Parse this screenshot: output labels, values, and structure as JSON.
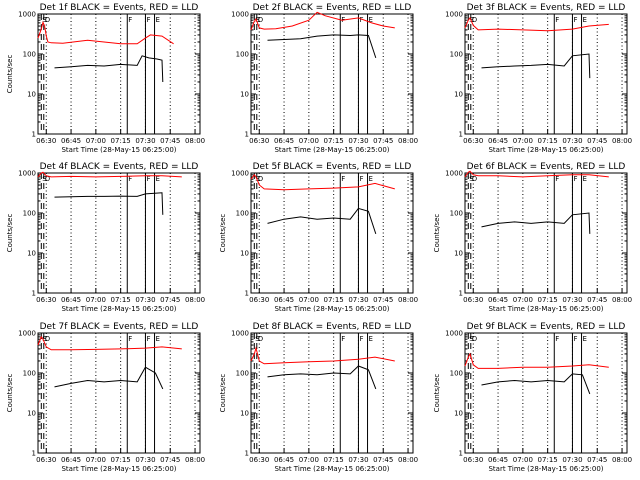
{
  "chart_data": [
    {
      "type": "line",
      "title": "Det 1f BLACK = Events, RED = LLD",
      "xlabel": "Start Time (28-May-15 06:25:00)",
      "ylabel": "Counts/sec",
      "xlim": [
        "06:25",
        "08:03"
      ],
      "ylim": [
        1,
        1000
      ],
      "yscale": "log",
      "xticks": [
        "06:30",
        "06:45",
        "07:00",
        "07:15",
        "07:30",
        "07:45",
        "08:00"
      ],
      "yticks": [
        "1",
        "10",
        "100",
        "1000"
      ],
      "markers": [
        {
          "label": "S",
          "time": "06:27"
        },
        {
          "label": "D",
          "time": "06:28.5"
        },
        {
          "label": "F",
          "time": "07:19"
        },
        {
          "label": "F",
          "time": "07:30"
        },
        {
          "label": "E",
          "time": "07:35.5"
        }
      ],
      "series": [
        {
          "name": "LLD",
          "color": "#ff0000",
          "x": [
            "06:25",
            "06:27",
            "06:28",
            "06:29",
            "06:30",
            "06:31",
            "06:33",
            "06:40",
            "06:55",
            "07:05",
            "07:15",
            "07:25",
            "07:30",
            "07:33",
            "07:40",
            "07:47"
          ],
          "values": [
            250,
            420,
            620,
            500,
            280,
            200,
            190,
            185,
            220,
            200,
            180,
            180,
            250,
            300,
            280,
            180
          ]
        },
        {
          "name": "Events",
          "color": "#000000",
          "x": [
            "06:35",
            "06:45",
            "06:55",
            "07:05",
            "07:15",
            "07:25",
            "07:28",
            "07:32",
            "07:37",
            "07:40",
            "07:40.5"
          ],
          "values": [
            45,
            48,
            52,
            50,
            55,
            52,
            90,
            80,
            75,
            70,
            20
          ]
        }
      ]
    },
    {
      "type": "line",
      "title": "Det 2f BLACK = Events, RED = LLD",
      "xlabel": "Start Time (28-May-15 06:25:00)",
      "ylabel": "",
      "xlim": [
        "06:25",
        "08:03"
      ],
      "ylim": [
        1,
        1000
      ],
      "yscale": "log",
      "xticks": [
        "06:30",
        "06:45",
        "07:00",
        "07:15",
        "07:30",
        "07:45",
        "08:00"
      ],
      "yticks": [
        "1",
        "10",
        "100",
        "1000"
      ],
      "markers": [
        {
          "label": "S",
          "time": "06:27"
        },
        {
          "label": "D",
          "time": "06:28.5"
        },
        {
          "label": "F",
          "time": "07:19"
        },
        {
          "label": "F",
          "time": "07:30"
        },
        {
          "label": "E",
          "time": "07:35.5"
        }
      ],
      "series": [
        {
          "name": "LLD",
          "color": "#ff0000",
          "x": [
            "06:25",
            "06:27",
            "06:28",
            "06:30",
            "06:33",
            "06:40",
            "06:50",
            "07:00",
            "07:05",
            "07:10",
            "07:20",
            "07:30",
            "07:38",
            "07:45",
            "07:52"
          ],
          "values": [
            400,
            650,
            750,
            450,
            420,
            430,
            500,
            700,
            1100,
            900,
            700,
            800,
            600,
            500,
            450
          ]
        },
        {
          "name": "Events",
          "color": "#000000",
          "x": [
            "06:35",
            "06:45",
            "06:55",
            "07:05",
            "07:15",
            "07:25",
            "07:30",
            "07:36",
            "07:40.5"
          ],
          "values": [
            220,
            230,
            240,
            280,
            300,
            290,
            300,
            290,
            80
          ]
        }
      ]
    },
    {
      "type": "line",
      "title": "Det 3f BLACK = Events, RED = LLD",
      "xlabel": "Start Time (28-May-15 06:25:00)",
      "ylabel": "",
      "xlim": [
        "06:25",
        "08:03"
      ],
      "ylim": [
        1,
        1000
      ],
      "yscale": "log",
      "xticks": [
        "06:30",
        "06:45",
        "07:00",
        "07:15",
        "07:30",
        "07:45",
        "08:00"
      ],
      "yticks": [
        "1",
        "10",
        "100",
        "1000"
      ],
      "markers": [
        {
          "label": "S",
          "time": "06:27"
        },
        {
          "label": "D",
          "time": "06:28.5"
        },
        {
          "label": "F",
          "time": "07:19"
        },
        {
          "label": "F",
          "time": "07:30"
        },
        {
          "label": "E",
          "time": "07:35.5"
        }
      ],
      "series": [
        {
          "name": "LLD",
          "color": "#ff0000",
          "x": [
            "06:25",
            "06:27",
            "06:28",
            "06:30",
            "06:33",
            "06:45",
            "07:00",
            "07:15",
            "07:30",
            "07:40",
            "07:52"
          ],
          "values": [
            450,
            700,
            800,
            520,
            400,
            420,
            400,
            380,
            420,
            500,
            550
          ]
        },
        {
          "name": "Events",
          "color": "#000000",
          "x": [
            "06:35",
            "06:45",
            "06:55",
            "07:05",
            "07:15",
            "07:25",
            "07:30",
            "07:40",
            "07:40.5"
          ],
          "values": [
            45,
            48,
            50,
            52,
            55,
            50,
            90,
            100,
            25
          ]
        }
      ]
    },
    {
      "type": "line",
      "title": "Det 4f BLACK = Events, RED = LLD",
      "xlabel": "Start Time (28-May-15 06:25:00)",
      "ylabel": "Counts/sec",
      "xlim": [
        "06:25",
        "08:03"
      ],
      "ylim": [
        1,
        1000
      ],
      "yscale": "log",
      "xticks": [
        "06:30",
        "06:45",
        "07:00",
        "07:15",
        "07:30",
        "07:45",
        "08:00"
      ],
      "yticks": [
        "1",
        "10",
        "100",
        "1000"
      ],
      "markers": [
        {
          "label": "S",
          "time": "06:27"
        },
        {
          "label": "D",
          "time": "06:28.5"
        },
        {
          "label": "F",
          "time": "07:19"
        },
        {
          "label": "F",
          "time": "07:30"
        },
        {
          "label": "E",
          "time": "07:35.5"
        }
      ],
      "series": [
        {
          "name": "LLD",
          "color": "#ff0000",
          "x": [
            "06:25",
            "06:27",
            "06:28",
            "06:30",
            "06:33",
            "06:45",
            "07:00",
            "07:15",
            "07:30",
            "07:40",
            "07:52"
          ],
          "values": [
            800,
            1000,
            1050,
            850,
            800,
            820,
            800,
            820,
            850,
            850,
            800
          ]
        },
        {
          "name": "Events",
          "color": "#000000",
          "x": [
            "06:35",
            "06:45",
            "06:55",
            "07:05",
            "07:15",
            "07:25",
            "07:30",
            "07:40",
            "07:40.5"
          ],
          "values": [
            250,
            255,
            260,
            260,
            265,
            260,
            300,
            320,
            90
          ]
        }
      ]
    },
    {
      "type": "line",
      "title": "Det 5f BLACK = Events, RED = LLD",
      "xlabel": "Start Time (28-May-15 06:25:00)",
      "ylabel": "Counts/sec",
      "xlim": [
        "06:25",
        "08:03"
      ],
      "ylim": [
        1,
        1000
      ],
      "yscale": "log",
      "xticks": [
        "06:30",
        "06:45",
        "07:00",
        "07:15",
        "07:30",
        "07:45",
        "08:00"
      ],
      "yticks": [
        "1",
        "10",
        "100",
        "1000"
      ],
      "markers": [
        {
          "label": "S",
          "time": "06:27"
        },
        {
          "label": "D",
          "time": "06:28.5"
        },
        {
          "label": "F",
          "time": "07:19"
        },
        {
          "label": "F",
          "time": "07:30"
        },
        {
          "label": "E",
          "time": "07:35.5"
        }
      ],
      "series": [
        {
          "name": "LLD",
          "color": "#ff0000",
          "x": [
            "06:25",
            "06:27",
            "06:28",
            "06:30",
            "06:33",
            "06:45",
            "07:00",
            "07:15",
            "07:30",
            "07:40",
            "07:52"
          ],
          "values": [
            700,
            900,
            800,
            500,
            400,
            380,
            400,
            420,
            450,
            550,
            400
          ]
        },
        {
          "name": "Events",
          "color": "#000000",
          "x": [
            "06:35",
            "06:45",
            "06:55",
            "07:05",
            "07:15",
            "07:25",
            "07:30",
            "07:36",
            "07:40.5"
          ],
          "values": [
            55,
            70,
            80,
            70,
            75,
            70,
            130,
            110,
            30
          ]
        }
      ]
    },
    {
      "type": "line",
      "title": "Det 6f BLACK = Events, RED = LLD",
      "xlabel": "Start Time (28-May-15 06:25:00)",
      "ylabel": "Counts/sec",
      "xlim": [
        "06:25",
        "08:03"
      ],
      "ylim": [
        1,
        1000
      ],
      "yscale": "log",
      "xticks": [
        "06:30",
        "06:45",
        "07:00",
        "07:15",
        "07:30",
        "07:45",
        "08:00"
      ],
      "yticks": [
        "1",
        "10",
        "100",
        "1000"
      ],
      "markers": [
        {
          "label": "S",
          "time": "06:27"
        },
        {
          "label": "D",
          "time": "06:28.5"
        },
        {
          "label": "F",
          "time": "07:19"
        },
        {
          "label": "F",
          "time": "07:30"
        },
        {
          "label": "E",
          "time": "07:35.5"
        }
      ],
      "series": [
        {
          "name": "LLD",
          "color": "#ff0000",
          "x": [
            "06:25",
            "06:27",
            "06:28",
            "06:30",
            "06:33",
            "06:45",
            "07:00",
            "07:15",
            "07:30",
            "07:40",
            "07:52"
          ],
          "values": [
            800,
            1050,
            1100,
            900,
            850,
            850,
            800,
            850,
            900,
            900,
            800
          ]
        },
        {
          "name": "Events",
          "color": "#000000",
          "x": [
            "06:35",
            "06:45",
            "06:55",
            "07:05",
            "07:15",
            "07:25",
            "07:30",
            "07:40",
            "07:40.5"
          ],
          "values": [
            45,
            55,
            60,
            55,
            60,
            55,
            90,
            100,
            30
          ]
        }
      ]
    },
    {
      "type": "line",
      "title": "Det 7f BLACK = Events, RED = LLD",
      "xlabel": "Start Time (28-May-15 06:25:00)",
      "ylabel": "Counts/sec",
      "xlim": [
        "06:25",
        "08:03"
      ],
      "ylim": [
        1,
        1000
      ],
      "yscale": "log",
      "xticks": [
        "06:30",
        "06:45",
        "07:00",
        "07:15",
        "07:30",
        "07:45",
        "08:00"
      ],
      "yticks": [
        "1",
        "10",
        "100",
        "1000"
      ],
      "markers": [
        {
          "label": "S",
          "time": "06:27"
        },
        {
          "label": "D",
          "time": "06:28.5"
        },
        {
          "label": "F",
          "time": "07:19"
        },
        {
          "label": "F",
          "time": "07:30"
        },
        {
          "label": "E",
          "time": "07:35.5"
        }
      ],
      "series": [
        {
          "name": "LLD",
          "color": "#ff0000",
          "x": [
            "06:25",
            "06:27",
            "06:28",
            "06:30",
            "06:33",
            "06:45",
            "07:00",
            "07:15",
            "07:30",
            "07:40",
            "07:52"
          ],
          "values": [
            500,
            800,
            700,
            450,
            380,
            380,
            390,
            400,
            420,
            450,
            400
          ]
        },
        {
          "name": "Events",
          "color": "#000000",
          "x": [
            "06:35",
            "06:45",
            "06:55",
            "07:05",
            "07:15",
            "07:25",
            "07:30",
            "07:36",
            "07:40.5"
          ],
          "values": [
            45,
            55,
            65,
            60,
            65,
            60,
            140,
            100,
            40
          ]
        }
      ]
    },
    {
      "type": "line",
      "title": "Det 8f BLACK = Events, RED = LLD",
      "xlabel": "Start Time (28-May-15 06:25:00)",
      "ylabel": "Counts/sec",
      "xlim": [
        "06:25",
        "08:03"
      ],
      "ylim": [
        1,
        1000
      ],
      "yscale": "log",
      "xticks": [
        "06:30",
        "06:45",
        "07:00",
        "07:15",
        "07:30",
        "07:45",
        "08:00"
      ],
      "yticks": [
        "1",
        "10",
        "100",
        "1000"
      ],
      "markers": [
        {
          "label": "S",
          "time": "06:27"
        },
        {
          "label": "D",
          "time": "06:28.5"
        },
        {
          "label": "F",
          "time": "07:19"
        },
        {
          "label": "F",
          "time": "07:30"
        },
        {
          "label": "E",
          "time": "07:35.5"
        }
      ],
      "series": [
        {
          "name": "LLD",
          "color": "#ff0000",
          "x": [
            "06:25",
            "06:27",
            "06:28",
            "06:30",
            "06:33",
            "06:45",
            "07:00",
            "07:15",
            "07:30",
            "07:40",
            "07:52"
          ],
          "values": [
            200,
            300,
            420,
            200,
            170,
            180,
            190,
            200,
            220,
            250,
            200
          ]
        },
        {
          "name": "Events",
          "color": "#000000",
          "x": [
            "06:35",
            "06:45",
            "06:55",
            "07:05",
            "07:15",
            "07:25",
            "07:30",
            "07:36",
            "07:40.5"
          ],
          "values": [
            80,
            90,
            95,
            90,
            100,
            95,
            150,
            120,
            40
          ]
        }
      ]
    },
    {
      "type": "line",
      "title": "Det 9f BLACK = Events, RED = LLD",
      "xlabel": "Start Time (28-May-15 06:25:00)",
      "ylabel": "Counts/sec",
      "xlim": [
        "06:25",
        "08:03"
      ],
      "ylim": [
        1,
        1000
      ],
      "yscale": "log",
      "xticks": [
        "06:30",
        "06:45",
        "07:00",
        "07:15",
        "07:30",
        "07:45",
        "08:00"
      ],
      "yticks": [
        "1",
        "10",
        "100",
        "1000"
      ],
      "markers": [
        {
          "label": "S",
          "time": "06:27"
        },
        {
          "label": "D",
          "time": "06:28.5"
        },
        {
          "label": "F",
          "time": "07:19"
        },
        {
          "label": "F",
          "time": "07:30"
        },
        {
          "label": "E",
          "time": "07:35.5"
        }
      ],
      "series": [
        {
          "name": "LLD",
          "color": "#ff0000",
          "x": [
            "06:25",
            "06:27",
            "06:28",
            "06:30",
            "06:33",
            "06:45",
            "07:00",
            "07:15",
            "07:30",
            "07:40",
            "07:52"
          ],
          "values": [
            150,
            250,
            300,
            160,
            130,
            130,
            140,
            140,
            150,
            160,
            140
          ]
        },
        {
          "name": "Events",
          "color": "#000000",
          "x": [
            "06:35",
            "06:45",
            "06:55",
            "07:05",
            "07:15",
            "07:25",
            "07:30",
            "07:36",
            "07:40.5"
          ],
          "values": [
            50,
            60,
            65,
            60,
            65,
            60,
            95,
            90,
            30
          ]
        }
      ]
    }
  ]
}
